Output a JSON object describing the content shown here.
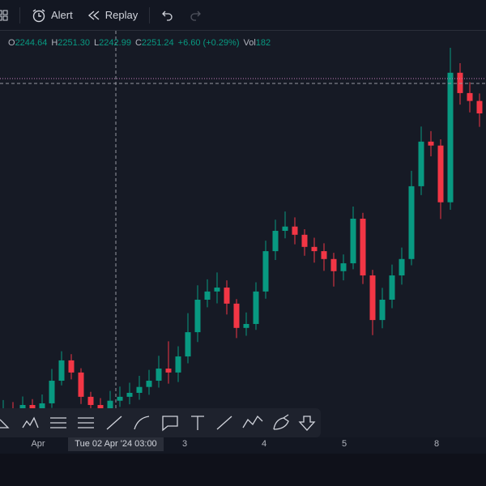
{
  "toolbar": {
    "alert": "Alert",
    "replay": "Replay"
  },
  "legend": {
    "o_label": "O",
    "o": "2244.64",
    "h_label": "H",
    "h": "2251.30",
    "l_label": "L",
    "l": "2242.99",
    "c_label": "C",
    "c": "2251.24",
    "change": "+6.60 (+0.29%)",
    "vol_label": "Vol",
    "vol": "182"
  },
  "x_axis": {
    "labels": [
      "Apr",
      "3",
      "4",
      "5",
      "8"
    ],
    "crosshair": "Tue 02 Apr '24 03:00"
  },
  "chart_data": {
    "type": "candlestick",
    "open": [
      2244.0,
      2245.8,
      2244.5,
      2247.0,
      2244.1,
      2247.5,
      2254.4,
      2260.6,
      2256.9,
      2249.5,
      2247.0,
      2245.8,
      2248.3,
      2249.5,
      2250.7,
      2252.5,
      2254.4,
      2258.1,
      2256.9,
      2261.8,
      2269.2,
      2279.1,
      2281.6,
      2282.8,
      2277.9,
      2270.5,
      2271.7,
      2281.6,
      2293.9,
      2300.1,
      2301.4,
      2298.9,
      2295.2,
      2293.9,
      2291.5,
      2287.8,
      2290.2,
      2303.8,
      2286.5,
      2272.9,
      2279.1,
      2286.5,
      2291.5,
      2313.7,
      2327.3,
      2326.1,
      2308.8,
      2348.3,
      2342.1,
      2339.7
    ],
    "high": [
      2248.5,
      2247.9,
      2249.6,
      2248.8,
      2250.2,
      2258.0,
      2263.4,
      2262.5,
      2258.2,
      2251.0,
      2249.1,
      2251.3,
      2252.6,
      2253.8,
      2255.9,
      2257.7,
      2262.0,
      2266.4,
      2264.9,
      2275.0,
      2283.5,
      2285.3,
      2287.4,
      2285.0,
      2279.3,
      2275.2,
      2284.4,
      2297.1,
      2303.5,
      2306.0,
      2304.2,
      2300.6,
      2298.0,
      2296.3,
      2293.4,
      2292.9,
      2307.5,
      2305.6,
      2288.2,
      2282.7,
      2289.8,
      2295.0,
      2318.4,
      2331.9,
      2330.5,
      2328.0,
      2355.9,
      2351.2,
      2345.4,
      2342.0
    ],
    "low": [
      2242.0,
      2242.3,
      2243.0,
      2241.5,
      2242.8,
      2246.1,
      2253.0,
      2254.8,
      2247.3,
      2244.2,
      2242.9,
      2243.0,
      2246.4,
      2247.2,
      2248.6,
      2250.1,
      2252.3,
      2253.5,
      2254.0,
      2259.7,
      2266.2,
      2276.8,
      2278.0,
      2274.6,
      2267.4,
      2268.1,
      2269.9,
      2279.4,
      2291.2,
      2297.8,
      2296.0,
      2292.5,
      2290.4,
      2287.9,
      2283.1,
      2285.0,
      2288.4,
      2283.9,
      2268.3,
      2270.4,
      2276.5,
      2283.7,
      2289.6,
      2311.0,
      2322.8,
      2303.7,
      2306.5,
      2338.6,
      2336.2,
      2331.8
    ],
    "close": [
      2245.8,
      2244.5,
      2247.0,
      2244.1,
      2247.5,
      2254.4,
      2260.6,
      2256.9,
      2249.5,
      2247.0,
      2245.8,
      2248.3,
      2249.5,
      2250.7,
      2252.5,
      2254.4,
      2258.1,
      2256.9,
      2261.8,
      2269.2,
      2279.1,
      2281.6,
      2282.8,
      2277.9,
      2270.5,
      2271.7,
      2281.6,
      2293.9,
      2300.1,
      2301.4,
      2298.9,
      2295.2,
      2293.9,
      2291.5,
      2287.8,
      2290.2,
      2303.8,
      2286.5,
      2272.9,
      2279.1,
      2286.5,
      2291.5,
      2313.7,
      2327.3,
      2326.1,
      2308.8,
      2348.3,
      2342.1,
      2339.7,
      2335.9
    ],
    "ylim": [
      2222.3,
      2360.6
    ],
    "up_color": "#089981",
    "down_color": "#f23645"
  }
}
